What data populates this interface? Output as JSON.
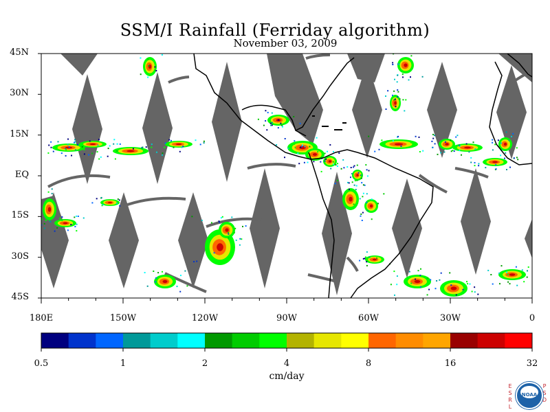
{
  "title": "SSM/I Rainfall (Ferriday algorithm)",
  "subtitle": "November 03, 2009",
  "map": {
    "lat_labels": [
      "45N",
      "30N",
      "15N",
      "EQ",
      "15S",
      "30S",
      "45S"
    ],
    "lat_values": [
      45,
      30,
      15,
      0,
      -15,
      -30,
      -45
    ],
    "lon_labels": [
      "180E",
      "150W",
      "120W",
      "90W",
      "60W",
      "30W",
      "0"
    ],
    "lon_values": [
      -180,
      -150,
      -120,
      -90,
      -60,
      -30,
      0
    ],
    "extent": {
      "lon": [
        -180,
        0
      ],
      "lat": [
        -45,
        45
      ]
    },
    "no_data_color": "#656565",
    "coastline_color": "#000000"
  },
  "colorbar": {
    "tick_labels": [
      "0.5",
      "1",
      "2",
      "4",
      "8",
      "16",
      "32"
    ],
    "units": "cm/day",
    "colors": [
      "#00007f",
      "#0033cc",
      "#0066ff",
      "#009999",
      "#00cccc",
      "#00ffff",
      "#009900",
      "#00cc00",
      "#00ff00",
      "#b3b300",
      "#e6e600",
      "#ffff00",
      "#ff6600",
      "#ff8c00",
      "#ffa500",
      "#990000",
      "#cc0000",
      "#ff0000"
    ]
  },
  "logo": {
    "left_letters": "ESRL",
    "right_letters": "PSD",
    "agency": "NOAA"
  }
}
